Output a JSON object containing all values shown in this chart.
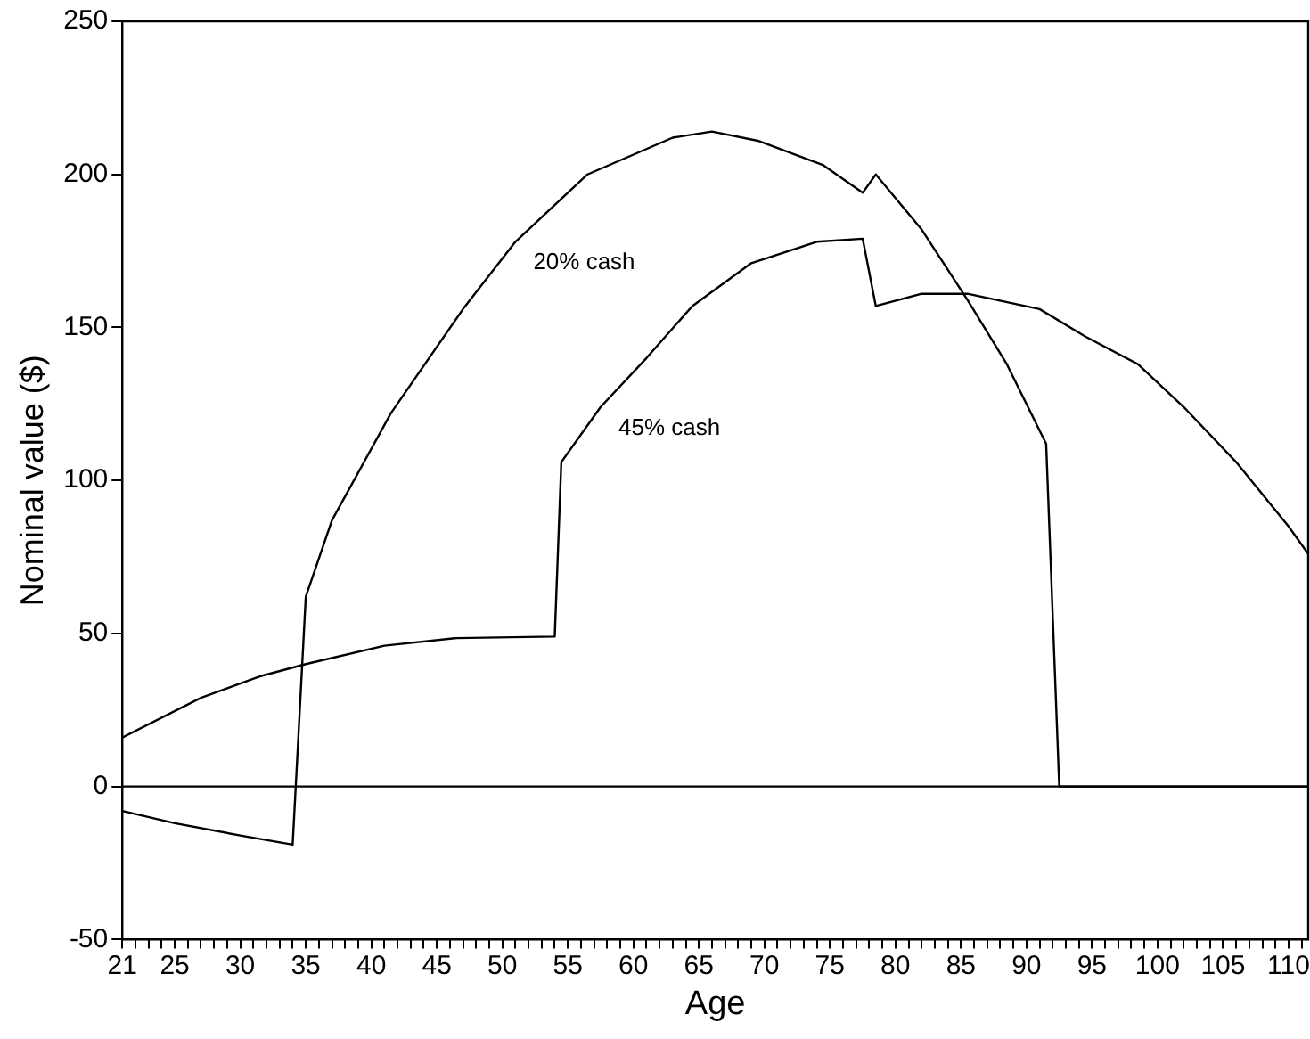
{
  "chart_data": {
    "type": "line",
    "xlabel": "Age",
    "ylabel": "Nominal value ($)",
    "xlim": [
      21,
      111.5
    ],
    "ylim": [
      -50,
      250
    ],
    "yticks": [
      -50,
      0,
      50,
      100,
      150,
      200,
      250
    ],
    "xticks": [
      21,
      {
        "value": 22,
        "label": null
      },
      {
        "value": 23,
        "label": null
      },
      {
        "value": 24,
        "label": null
      },
      25,
      {
        "value": 26,
        "label": null
      },
      {
        "value": 27,
        "label": null
      },
      {
        "value": 28,
        "label": null
      },
      {
        "value": 29,
        "label": null
      },
      30,
      {
        "value": 31,
        "label": null
      },
      {
        "value": 32,
        "label": null
      },
      {
        "value": 33,
        "label": null
      },
      {
        "value": 34,
        "label": null
      },
      35,
      {
        "value": 36,
        "label": null
      },
      {
        "value": 37,
        "label": null
      },
      {
        "value": 38,
        "label": null
      },
      {
        "value": 39,
        "label": null
      },
      40,
      {
        "value": 41,
        "label": null
      },
      {
        "value": 42,
        "label": null
      },
      {
        "value": 43,
        "label": null
      },
      {
        "value": 44,
        "label": null
      },
      45,
      {
        "value": 46,
        "label": null
      },
      {
        "value": 47,
        "label": null
      },
      {
        "value": 48,
        "label": null
      },
      {
        "value": 49,
        "label": null
      },
      50,
      {
        "value": 51,
        "label": null
      },
      {
        "value": 52,
        "label": null
      },
      {
        "value": 53,
        "label": null
      },
      {
        "value": 54,
        "label": null
      },
      55,
      {
        "value": 56,
        "label": null
      },
      {
        "value": 57,
        "label": null
      },
      {
        "value": 58,
        "label": null
      },
      {
        "value": 59,
        "label": null
      },
      60,
      {
        "value": 61,
        "label": null
      },
      {
        "value": 62,
        "label": null
      },
      {
        "value": 63,
        "label": null
      },
      {
        "value": 64,
        "label": null
      },
      65,
      {
        "value": 66,
        "label": null
      },
      {
        "value": 67,
        "label": null
      },
      {
        "value": 68,
        "label": null
      },
      {
        "value": 69,
        "label": null
      },
      70,
      {
        "value": 71,
        "label": null
      },
      {
        "value": 72,
        "label": null
      },
      {
        "value": 73,
        "label": null
      },
      {
        "value": 74,
        "label": null
      },
      75,
      {
        "value": 76,
        "label": null
      },
      {
        "value": 77,
        "label": null
      },
      {
        "value": 78,
        "label": null
      },
      {
        "value": 79,
        "label": null
      },
      80,
      {
        "value": 81,
        "label": null
      },
      {
        "value": 82,
        "label": null
      },
      {
        "value": 83,
        "label": null
      },
      {
        "value": 84,
        "label": null
      },
      85,
      {
        "value": 86,
        "label": null
      },
      {
        "value": 87,
        "label": null
      },
      {
        "value": 88,
        "label": null
      },
      {
        "value": 89,
        "label": null
      },
      90,
      {
        "value": 91,
        "label": null
      },
      {
        "value": 92,
        "label": null
      },
      {
        "value": 93,
        "label": null
      },
      {
        "value": 94,
        "label": null
      },
      95,
      {
        "value": 96,
        "label": null
      },
      {
        "value": 97,
        "label": null
      },
      {
        "value": 98,
        "label": null
      },
      {
        "value": 99,
        "label": null
      },
      100,
      {
        "value": 101,
        "label": null
      },
      {
        "value": 102,
        "label": null
      },
      {
        "value": 103,
        "label": null
      },
      {
        "value": 104,
        "label": null
      },
      105,
      {
        "value": 106,
        "label": null
      },
      {
        "value": 107,
        "label": null
      },
      {
        "value": 108,
        "label": null
      },
      {
        "value": 109,
        "label": null
      },
      110,
      {
        "value": 111,
        "label": null
      }
    ],
    "series": [
      {
        "name": "20% cash",
        "color": "#000000",
        "x": [
          21,
          25,
          30,
          34,
          35,
          37,
          41.5,
          47,
          51,
          56.5,
          63,
          66,
          69.5,
          74.5,
          77.5,
          78.5,
          82,
          85.5,
          88.5,
          91.5,
          92.5,
          111.5
        ],
        "values": [
          -8,
          -12,
          -16,
          -19,
          62,
          87,
          122,
          156,
          178,
          200,
          212,
          214,
          211,
          203,
          194,
          200,
          182,
          159,
          138,
          112,
          0,
          0
        ]
      },
      {
        "name": "45% cash",
        "color": "#000000",
        "x": [
          21,
          27,
          31.5,
          35,
          41,
          46.5,
          54,
          54.5,
          57.5,
          61,
          64.5,
          69,
          74,
          77.5,
          78.5,
          82,
          85.5,
          91,
          94.5,
          98.5,
          102,
          106,
          110,
          111.5
        ],
        "values": [
          16,
          29,
          36,
          40,
          46,
          48.5,
          49,
          106,
          124,
          140,
          157,
          171,
          178,
          179,
          157,
          161,
          161,
          156,
          147,
          138,
          124,
          106,
          85,
          76
        ]
      }
    ],
    "ref_lines": [
      {
        "axis": "y",
        "value": 0,
        "color": "#000000"
      }
    ],
    "grid": false,
    "legend": false,
    "marker": "none",
    "line_style": "solid"
  }
}
